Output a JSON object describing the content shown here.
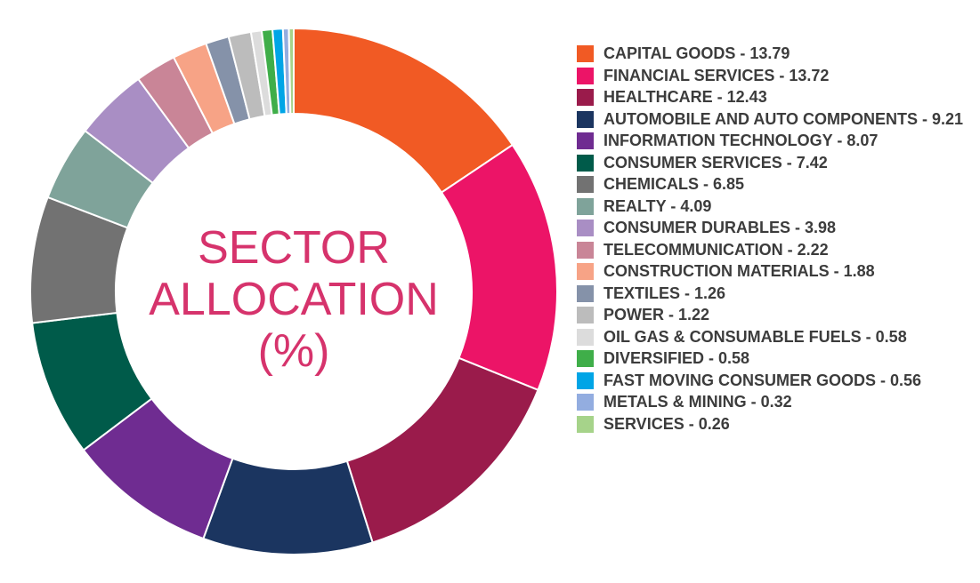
{
  "chart_data": {
    "type": "pie",
    "donut": true,
    "title_lines": [
      "SECTOR",
      "ALLOCATION",
      "(%)"
    ],
    "slices": [
      {
        "label": "CAPITAL GOODS - 13.79",
        "name": "CAPITAL GOODS",
        "value": 13.79,
        "color": "#f15a24"
      },
      {
        "label": "FINANCIAL SERVICES - 13.72",
        "name": "FINANCIAL SERVICES",
        "value": 13.72,
        "color": "#ec1467"
      },
      {
        "label": "HEALTHCARE - 12.43",
        "name": "HEALTHCARE",
        "value": 12.43,
        "color": "#9a1b4b"
      },
      {
        "label": "AUTOMOBILE AND AUTO COMPONENTS - 9.21",
        "name": "AUTOMOBILE AND AUTO COMPONENTS",
        "value": 9.21,
        "color": "#1b3560"
      },
      {
        "label": "INFORMATION TECHNOLOGY - 8.07",
        "name": "INFORMATION TECHNOLOGY",
        "value": 8.07,
        "color": "#6f2c91"
      },
      {
        "label": "CONSUMER SERVICES - 7.42",
        "name": "CONSUMER SERVICES",
        "value": 7.42,
        "color": "#005b4a"
      },
      {
        "label": "CHEMICALS - 6.85",
        "name": "CHEMICALS",
        "value": 6.85,
        "color": "#727272"
      },
      {
        "label": "REALTY - 4.09",
        "name": "REALTY",
        "value": 4.09,
        "color": "#7fa39a"
      },
      {
        "label": "CONSUMER DURABLES - 3.98",
        "name": "CONSUMER DURABLES",
        "value": 3.98,
        "color": "#a98ec4"
      },
      {
        "label": "TELECOMMUNICATION - 2.22",
        "name": "TELECOMMUNICATION",
        "value": 2.22,
        "color": "#c98597"
      },
      {
        "label": "CONSTRUCTION MATERIALS - 1.88",
        "name": "CONSTRUCTION MATERIALS",
        "value": 1.88,
        "color": "#f7a386"
      },
      {
        "label": "TEXTILES - 1.26",
        "name": "TEXTILES",
        "value": 1.26,
        "color": "#8592a9"
      },
      {
        "label": "POWER - 1.22",
        "name": "POWER",
        "value": 1.22,
        "color": "#bcbcbc"
      },
      {
        "label": "OIL GAS & CONSUMABLE FUELS - 0.58",
        "name": "OIL GAS & CONSUMABLE FUELS",
        "value": 0.58,
        "color": "#dcdcdc"
      },
      {
        "label": "DIVERSIFIED - 0.58",
        "name": "DIVERSIFIED",
        "value": 0.58,
        "color": "#3fae49"
      },
      {
        "label": "FAST MOVING CONSUMER GOODS - 0.56",
        "name": "FAST MOVING CONSUMER GOODS",
        "value": 0.56,
        "color": "#00a5e6"
      },
      {
        "label": "METALS & MINING - 0.32",
        "name": "METALS & MINING",
        "value": 0.32,
        "color": "#93ade0"
      },
      {
        "label": "SERVICES - 0.26",
        "name": "SERVICES",
        "value": 0.26,
        "color": "#a6d38a"
      }
    ],
    "legend_position": "right"
  }
}
